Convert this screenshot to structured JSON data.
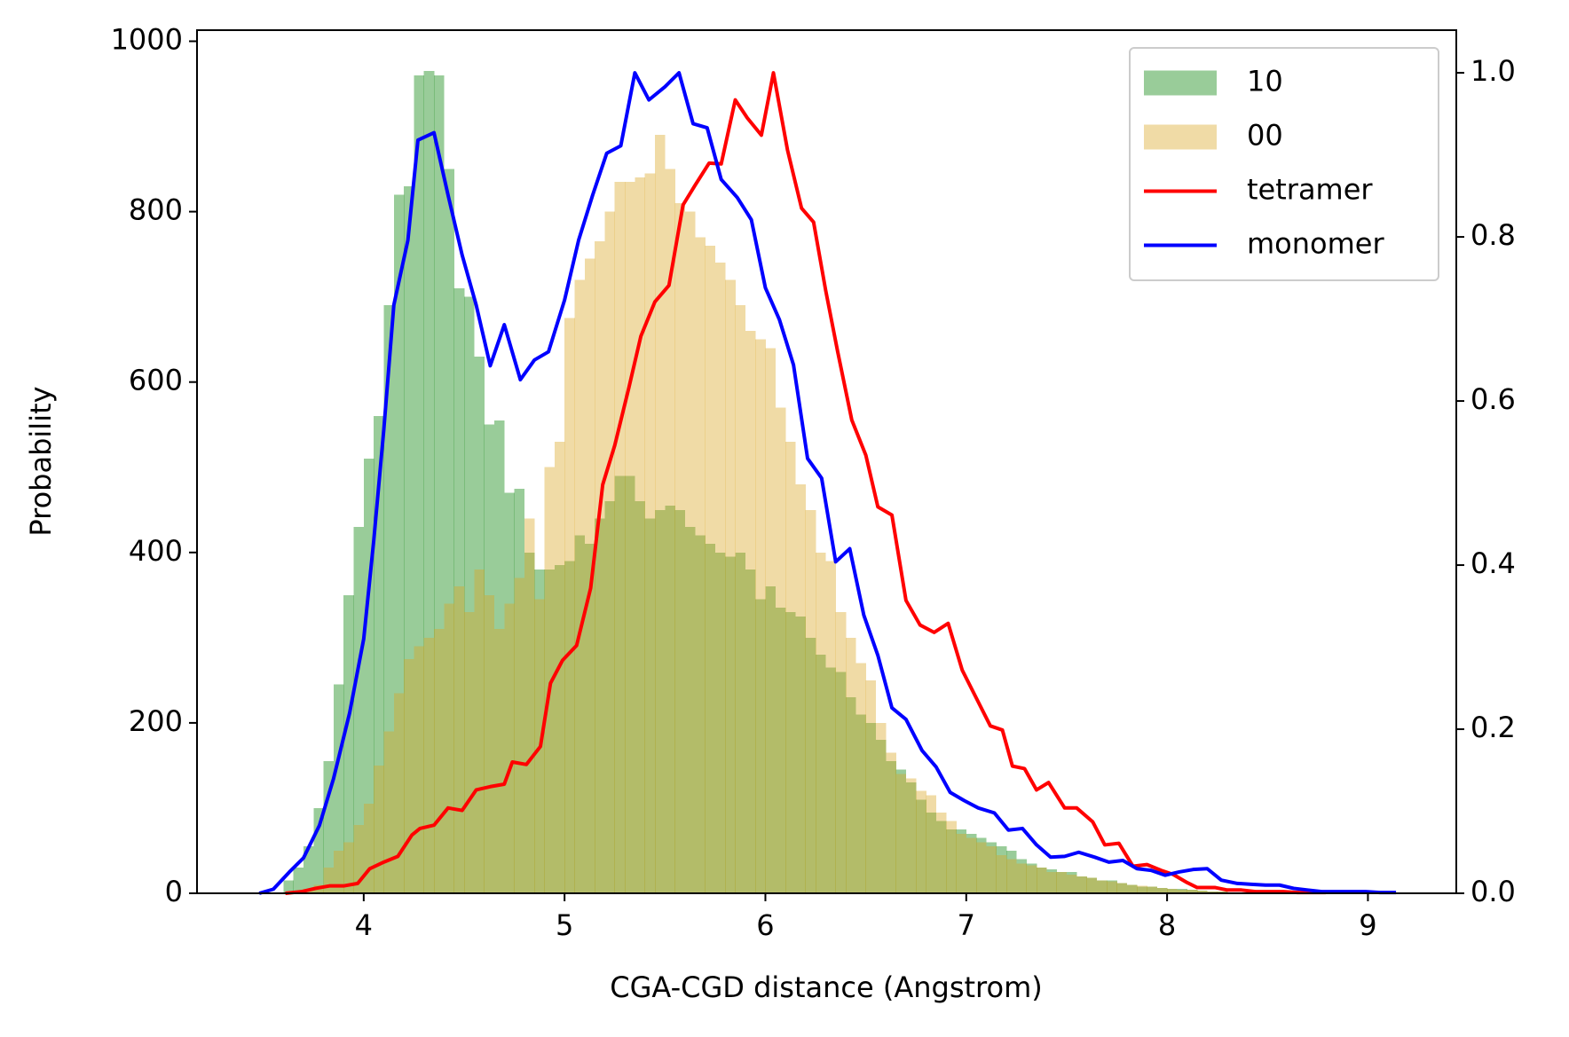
{
  "chart_data": {
    "type": "histogram",
    "xlabel": "CGA-CGD distance (Angstrom)",
    "ylabel": "Probability",
    "xlim": [
      3.17,
      9.44
    ],
    "ylim": [
      0,
      1013
    ],
    "y2lim": [
      0,
      1.052
    ],
    "xticks": [
      4,
      5,
      6,
      7,
      8,
      9
    ],
    "yticks": [
      0,
      200,
      400,
      600,
      800,
      1000
    ],
    "y2ticks": [
      {
        "value": 0,
        "label": "0.0"
      },
      0.2,
      0.4,
      0.6,
      0.8,
      {
        "value": 1,
        "label": "1.0"
      }
    ],
    "legend": "upper right",
    "bins": [
      3.6,
      3.65,
      3.7,
      3.75,
      3.8,
      3.85,
      3.9,
      3.95,
      4.0,
      4.05,
      4.1,
      4.15,
      4.2,
      4.25,
      4.3,
      4.35,
      4.4,
      4.45,
      4.5,
      4.55,
      4.6,
      4.65,
      4.7,
      4.75,
      4.8,
      4.85,
      4.9,
      4.95,
      5.0,
      5.05,
      5.1,
      5.15,
      5.2,
      5.25,
      5.3,
      5.35,
      5.4,
      5.45,
      5.5,
      5.55,
      5.6,
      5.65,
      5.7,
      5.75,
      5.8,
      5.85,
      5.9,
      5.95,
      6.0,
      6.05,
      6.1,
      6.15,
      6.2,
      6.25,
      6.3,
      6.35,
      6.4,
      6.45,
      6.5,
      6.55,
      6.6,
      6.65,
      6.7,
      6.75,
      6.8,
      6.85,
      6.9,
      6.95,
      7.0,
      7.05,
      7.1,
      7.15,
      7.2,
      7.25,
      7.3,
      7.35,
      7.4,
      7.45,
      7.5,
      7.55,
      7.6,
      7.65,
      7.7,
      7.75,
      7.8,
      7.85,
      7.9,
      7.95,
      8.0,
      8.05,
      8.1,
      8.15,
      8.2,
      8.25,
      8.3,
      8.35,
      8.4,
      8.45,
      8.5
    ],
    "series": [
      {
        "name": "10",
        "type": "histogram",
        "color": "#008000",
        "counts": [
          15,
          30,
          55,
          100,
          155,
          245,
          350,
          430,
          510,
          560,
          690,
          820,
          830,
          960,
          965,
          960,
          850,
          710,
          700,
          630,
          550,
          555,
          470,
          475,
          400,
          380,
          380,
          385,
          390,
          420,
          410,
          440,
          460,
          490,
          490,
          460,
          440,
          450,
          455,
          450,
          430,
          420,
          410,
          400,
          395,
          400,
          380,
          345,
          360,
          335,
          330,
          325,
          300,
          280,
          265,
          260,
          230,
          210,
          200,
          180,
          155,
          145,
          130,
          110,
          95,
          85,
          75,
          75,
          70,
          65,
          60,
          55,
          50,
          40,
          35,
          30,
          28,
          25,
          25,
          20,
          18,
          15,
          15,
          12,
          10,
          8,
          8,
          6,
          5,
          5,
          4,
          3,
          2,
          2,
          1,
          1,
          1,
          1
        ]
      },
      {
        "name": "00",
        "type": "histogram",
        "color": "#daa520",
        "counts": [
          0,
          2,
          5,
          10,
          30,
          50,
          60,
          80,
          105,
          150,
          190,
          235,
          275,
          290,
          300,
          310,
          340,
          360,
          330,
          380,
          350,
          310,
          340,
          370,
          440,
          345,
          500,
          530,
          675,
          720,
          745,
          765,
          800,
          835,
          835,
          840,
          845,
          890,
          850,
          810,
          800,
          770,
          760,
          740,
          720,
          690,
          660,
          650,
          640,
          570,
          530,
          480,
          450,
          400,
          390,
          330,
          300,
          270,
          250,
          200,
          165,
          140,
          135,
          120,
          115,
          95,
          85,
          70,
          65,
          60,
          55,
          45,
          40,
          35,
          33,
          30,
          25,
          25,
          22,
          20,
          18,
          15,
          14,
          12,
          10,
          9,
          8,
          6,
          5,
          4,
          4,
          3,
          2,
          2,
          1,
          1,
          1,
          0
        ]
      },
      {
        "name": "tetramer",
        "type": "line",
        "color": "#ff0000",
        "axis": "y2",
        "x": [
          3.61,
          3.69,
          3.76,
          3.83,
          3.9,
          3.97,
          4.03,
          4.1,
          4.17,
          4.24,
          4.28,
          4.35,
          4.42,
          4.49,
          4.56,
          4.63,
          4.7,
          4.74,
          4.81,
          4.88,
          4.93,
          4.99,
          5.06,
          5.13,
          5.19,
          5.25,
          5.32,
          5.38,
          5.45,
          5.52,
          5.59,
          5.65,
          5.72,
          5.78,
          5.85,
          5.91,
          5.98,
          6.04,
          6.11,
          6.18,
          6.24,
          6.3,
          6.36,
          6.43,
          6.5,
          6.56,
          6.63,
          6.7,
          6.77,
          6.84,
          6.91,
          6.98,
          7.05,
          7.12,
          7.18,
          7.23,
          7.29,
          7.35,
          7.41,
          7.49,
          7.55,
          7.63,
          7.69,
          7.76,
          7.83,
          7.9,
          7.97,
          8.03,
          8.1,
          8.15,
          8.24,
          8.3,
          8.37,
          8.44,
          8.51,
          8.58,
          8.65,
          8.72,
          8.79
        ],
        "values": [
          0,
          0.002,
          0.006,
          0.009,
          0.009,
          0.012,
          0.03,
          0.038,
          0.045,
          0.071,
          0.079,
          0.083,
          0.104,
          0.101,
          0.126,
          0.13,
          0.133,
          0.16,
          0.157,
          0.179,
          0.256,
          0.284,
          0.302,
          0.372,
          0.498,
          0.546,
          0.616,
          0.679,
          0.721,
          0.741,
          0.839,
          0.863,
          0.89,
          0.889,
          0.967,
          0.945,
          0.924,
          1.0,
          0.906,
          0.835,
          0.818,
          0.735,
          0.66,
          0.577,
          0.534,
          0.471,
          0.461,
          0.357,
          0.327,
          0.318,
          0.329,
          0.272,
          0.238,
          0.204,
          0.199,
          0.155,
          0.152,
          0.126,
          0.135,
          0.104,
          0.104,
          0.087,
          0.059,
          0.061,
          0.033,
          0.035,
          0.028,
          0.023,
          0.013,
          0.007,
          0.007,
          0.004,
          0.004,
          0.002,
          0.002,
          0.002,
          0.001,
          0.001,
          0.001
        ]
      },
      {
        "name": "monomer",
        "type": "line",
        "color": "#0000ff",
        "axis": "y2",
        "x": [
          3.48,
          3.55,
          3.63,
          3.7,
          3.78,
          3.85,
          3.93,
          4.0,
          4.05,
          4.1,
          4.15,
          4.22,
          4.27,
          4.35,
          4.42,
          4.49,
          4.56,
          4.63,
          4.7,
          4.78,
          4.85,
          4.92,
          5.0,
          5.07,
          5.14,
          5.21,
          5.28,
          5.35,
          5.42,
          5.5,
          5.57,
          5.64,
          5.71,
          5.78,
          5.86,
          5.93,
          6.0,
          6.07,
          6.14,
          6.21,
          6.28,
          6.35,
          6.42,
          6.49,
          6.56,
          6.63,
          6.7,
          6.78,
          6.85,
          6.92,
          6.99,
          7.06,
          7.14,
          7.21,
          7.28,
          7.35,
          7.42,
          7.49,
          7.56,
          7.64,
          7.71,
          7.78,
          7.85,
          7.92,
          7.99,
          8.06,
          8.13,
          8.2,
          8.27,
          8.35,
          8.42,
          8.49,
          8.56,
          8.63,
          8.7,
          8.77,
          8.85,
          8.92,
          8.99,
          9.06,
          9.14
        ],
        "values": [
          0,
          0.005,
          0.026,
          0.043,
          0.083,
          0.14,
          0.22,
          0.31,
          0.43,
          0.565,
          0.717,
          0.796,
          0.918,
          0.927,
          0.851,
          0.778,
          0.717,
          0.643,
          0.693,
          0.626,
          0.65,
          0.66,
          0.723,
          0.796,
          0.851,
          0.902,
          0.911,
          1.0,
          0.967,
          0.983,
          1.0,
          0.938,
          0.933,
          0.87,
          0.848,
          0.821,
          0.738,
          0.699,
          0.644,
          0.53,
          0.506,
          0.404,
          0.42,
          0.339,
          0.29,
          0.226,
          0.212,
          0.174,
          0.154,
          0.123,
          0.113,
          0.104,
          0.098,
          0.077,
          0.079,
          0.059,
          0.044,
          0.045,
          0.05,
          0.044,
          0.038,
          0.04,
          0.03,
          0.028,
          0.022,
          0.026,
          0.029,
          0.03,
          0.016,
          0.012,
          0.011,
          0.01,
          0.01,
          0.006,
          0.004,
          0.002,
          0.002,
          0.002,
          0.002,
          0.001,
          0.001
        ]
      }
    ]
  }
}
